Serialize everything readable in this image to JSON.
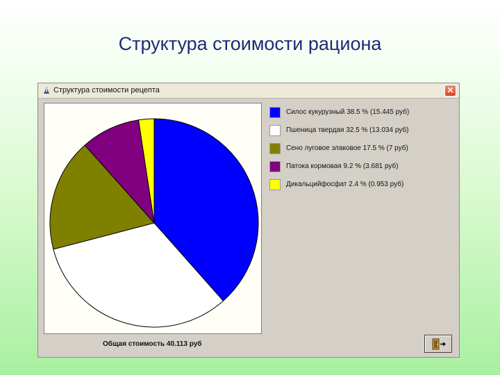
{
  "slide": {
    "title": "Структура стоимости рациона"
  },
  "window": {
    "title": "Структура стоимости рецепта",
    "close_icon": "close-icon",
    "exit_icon": "exit-door-icon"
  },
  "total": {
    "label": "Общая стоимость  40.113 руб"
  },
  "legend": [
    {
      "text": "Силос кукурузный 38.5 %  (15.445 руб)",
      "color": "#0000ff"
    },
    {
      "text": "Пшеница твердая 32.5 %  (13.034 руб)",
      "color": "#ffffff"
    },
    {
      "text": "Сено луговое злаковое 17.5 %  (7 руб)",
      "color": "#808000"
    },
    {
      "text": "Патока кормовая 9.2 %  (3.681 руб)",
      "color": "#800080"
    },
    {
      "text": "Дикальцийфосфат 2.4 %  (0.953 руб)",
      "color": "#ffff00"
    }
  ],
  "chart_data": {
    "type": "pie",
    "categories": [
      "Силос кукурузный",
      "Пшеница твердая",
      "Сено луговое злаковое",
      "Патока кормовая",
      "Дикальцийфосфат"
    ],
    "values": [
      38.5,
      32.5,
      17.5,
      9.2,
      2.4
    ],
    "costs": [
      15.445,
      13.034,
      7,
      3.681,
      0.953
    ],
    "colors": [
      "#0000ff",
      "#ffffff",
      "#808000",
      "#800080",
      "#ffff00"
    ],
    "legend_position": "right"
  }
}
